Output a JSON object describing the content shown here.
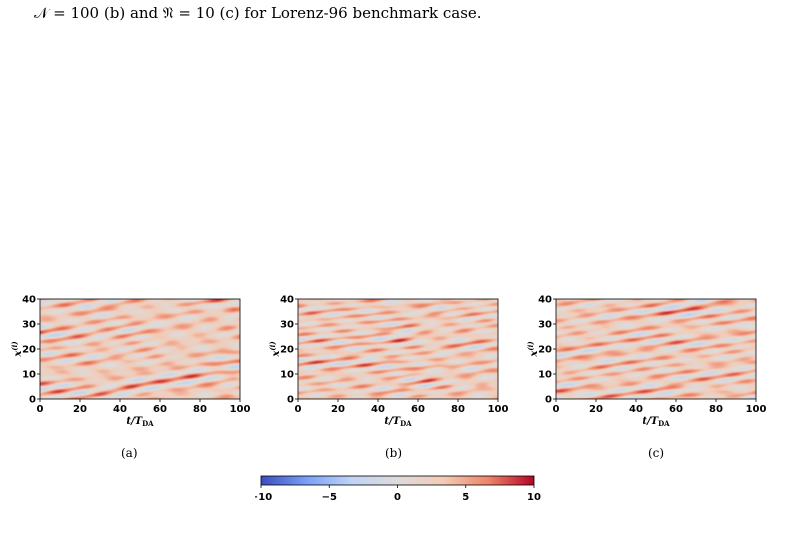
{
  "caption": {
    "part1": "𝒩 = 100 (b) and 𝔑 = 10 (c) for Lorenz-96 benchmark case."
  },
  "colors": {
    "cmap": [
      "#3b4cc0",
      "#7b9ff9",
      "#c0d4f5",
      "#dddcdc",
      "#f2cbb7",
      "#ee8468",
      "#b40426"
    ],
    "background": "#ffffff"
  },
  "chart_data": [
    {
      "type": "heatmap",
      "panel_label": "(a)",
      "xlabel": "t/T",
      "xlabel_sub": "DA",
      "ylabel": "x",
      "ylabel_sup": "(i)",
      "xlim": [
        0,
        100
      ],
      "ylim": [
        0,
        40
      ],
      "xticks": [
        "0",
        "20",
        "40",
        "60",
        "80",
        "100"
      ],
      "yticks": [
        "0",
        "10",
        "20",
        "30",
        "40"
      ],
      "colormap": "coolwarm",
      "vmin": -10,
      "vmax": 10,
      "seed": 3
    },
    {
      "type": "heatmap",
      "panel_label": "(b)",
      "xlabel": "t/T",
      "xlabel_sub": "DA",
      "ylabel": "x",
      "ylabel_sup": "(i)",
      "xlim": [
        0,
        100
      ],
      "ylim": [
        0,
        40
      ],
      "xticks": [
        "0",
        "20",
        "40",
        "60",
        "80",
        "100"
      ],
      "yticks": [
        "0",
        "10",
        "20",
        "30",
        "40"
      ],
      "colormap": "coolwarm",
      "vmin": -10,
      "vmax": 10,
      "seed": 7
    },
    {
      "type": "heatmap",
      "panel_label": "(c)",
      "xlabel": "t/T",
      "xlabel_sub": "DA",
      "ylabel": "x",
      "ylabel_sup": "(i)",
      "xlim": [
        0,
        100
      ],
      "ylim": [
        0,
        40
      ],
      "xticks": [
        "0",
        "20",
        "40",
        "60",
        "80",
        "100"
      ],
      "yticks": [
        "0",
        "10",
        "20",
        "30",
        "40"
      ],
      "colormap": "coolwarm",
      "vmin": -10,
      "vmax": 10,
      "seed": 11
    }
  ],
  "colorbar": {
    "ticks": [
      "−10",
      "−5",
      "0",
      "5",
      "10"
    ],
    "tick_values": [
      -10,
      -5,
      0,
      5,
      10
    ],
    "vmin": -10,
    "vmax": 10
  }
}
